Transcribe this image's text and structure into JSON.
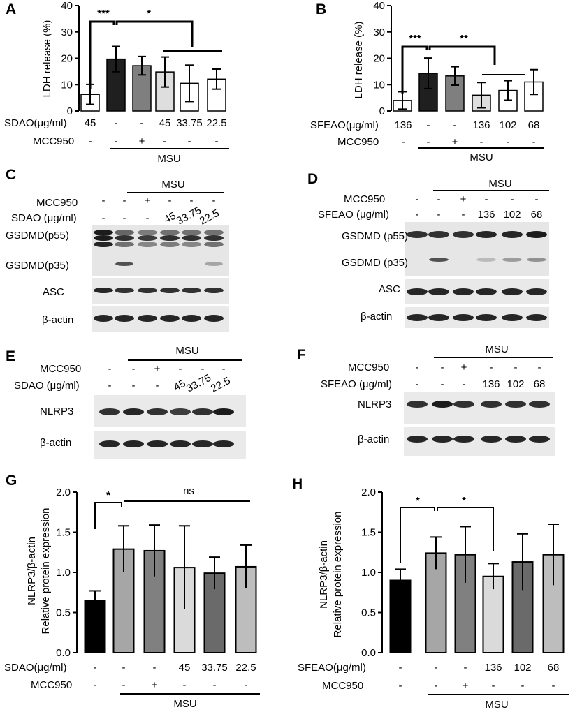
{
  "panels": {
    "A": {
      "label": "A",
      "chart_data": {
        "type": "bar",
        "ylabel": "LDH release (%)",
        "ylim": [
          0,
          40
        ],
        "yticks": [
          0,
          10,
          20,
          30,
          40
        ],
        "values": [
          6.3,
          19.7,
          17.2,
          14.8,
          10.5,
          12.1
        ],
        "errors": [
          3.8,
          4.8,
          3.5,
          5.7,
          6.9,
          3.8
        ],
        "colors": [
          "#ffffff",
          "#1f1f1f",
          "#7f7f7f",
          "#dedede",
          "#ffffff",
          "#ffffff"
        ],
        "row_labels": [
          "SDAO(μg/ml)",
          "MCC950"
        ],
        "conditions": [
          [
            "45",
            "-"
          ],
          [
            "-",
            "-"
          ],
          [
            "-",
            "+"
          ],
          [
            "45",
            "-"
          ],
          [
            "33.75",
            "-"
          ],
          [
            "22.5",
            "-"
          ]
        ],
        "group_label": "MSU",
        "significance": [
          "***",
          "*"
        ]
      }
    },
    "B": {
      "label": "B",
      "chart_data": {
        "type": "bar",
        "ylabel": "LDH release (%)",
        "ylim": [
          0,
          40
        ],
        "yticks": [
          0,
          10,
          20,
          30,
          40
        ],
        "values": [
          4.0,
          14.3,
          13.3,
          6.0,
          7.8,
          11.0
        ],
        "errors": [
          3.3,
          5.8,
          3.5,
          4.8,
          3.7,
          4.7
        ],
        "colors": [
          "#ffffff",
          "#1f1f1f",
          "#7f7f7f",
          "#dedede",
          "#ffffff",
          "#ffffff"
        ],
        "row_labels": [
          "SFEAO(μg/ml)",
          "MCC950"
        ],
        "conditions": [
          [
            "136",
            "-"
          ],
          [
            "-",
            "-"
          ],
          [
            "-",
            "+"
          ],
          [
            "136",
            "-"
          ],
          [
            "102",
            "-"
          ],
          [
            "68",
            "-"
          ]
        ],
        "group_label": "MSU",
        "significance": [
          "***",
          "**"
        ]
      }
    },
    "C": {
      "label": "C",
      "group_label": "MSU",
      "row_labels": [
        "MCC950",
        "SDAO (μg/ml)"
      ],
      "conditions": [
        [
          "-",
          "-"
        ],
        [
          "-",
          "-"
        ],
        [
          "+",
          "-"
        ],
        [
          "-",
          "45"
        ],
        [
          "-",
          "33.75"
        ],
        [
          "-",
          "22.5"
        ]
      ],
      "blots": [
        "GSDMD(p55)",
        "GSDMD(p35)",
        "ASC",
        "β-actin"
      ]
    },
    "D": {
      "label": "D",
      "group_label": "MSU",
      "row_labels": [
        "MCC950",
        "SFEAO (μg/ml)"
      ],
      "conditions": [
        [
          "-",
          "-"
        ],
        [
          "-",
          "-"
        ],
        [
          "+",
          "-"
        ],
        [
          "-",
          "136"
        ],
        [
          "-",
          "102"
        ],
        [
          "-",
          "68"
        ]
      ],
      "blots": [
        "GSDMD (p55)",
        "GSDMD (p35)",
        "ASC",
        "β-actin"
      ]
    },
    "E": {
      "label": "E",
      "group_label": "MSU",
      "row_labels": [
        "MCC950",
        "SDAO (μg/ml)"
      ],
      "conditions": [
        [
          "-",
          "-"
        ],
        [
          "-",
          "-"
        ],
        [
          "+",
          "-"
        ],
        [
          "-",
          "45"
        ],
        [
          "-",
          "33.75"
        ],
        [
          "-",
          "22.5"
        ]
      ],
      "blots": [
        "NLRP3",
        "β-actin"
      ]
    },
    "F": {
      "label": "F",
      "group_label": "MSU",
      "row_labels": [
        "MCC950",
        "SFEAO (μg/ml)"
      ],
      "conditions": [
        [
          "-",
          "-"
        ],
        [
          "-",
          "-"
        ],
        [
          "+",
          "-"
        ],
        [
          "-",
          "136"
        ],
        [
          "-",
          "102"
        ],
        [
          "-",
          "68"
        ]
      ],
      "blots": [
        "NLRP3",
        "β-actin"
      ]
    },
    "G": {
      "label": "G",
      "chart_data": {
        "type": "bar",
        "ylabel_line1": "NLRP3/β-actin",
        "ylabel_line2": "Relative protein expression",
        "ylim": [
          0,
          2.0
        ],
        "yticks": [
          "0.0",
          "0.5",
          "1.0",
          "1.5",
          "2.0"
        ],
        "values": [
          0.65,
          1.29,
          1.27,
          1.06,
          0.99,
          1.07
        ],
        "errors": [
          0.12,
          0.29,
          0.32,
          0.52,
          0.2,
          0.27
        ],
        "colors": [
          "#000000",
          "#a6a6a6",
          "#808080",
          "#dadada",
          "#6a6a6a",
          "#bdbdbd"
        ],
        "row_labels": [
          "SDAO(μg/ml)",
          "MCC950"
        ],
        "conditions": [
          [
            "-",
            "-"
          ],
          [
            "-",
            "-"
          ],
          [
            "-",
            "+"
          ],
          [
            "45",
            "-"
          ],
          [
            "33.75",
            "-"
          ],
          [
            "22.5",
            "-"
          ]
        ],
        "group_label": "MSU",
        "significance": [
          "*",
          "ns"
        ]
      }
    },
    "H": {
      "label": "H",
      "chart_data": {
        "type": "bar",
        "ylabel_line1": "NLRP3/β-actin",
        "ylabel_line2": "Relative protein expression",
        "ylim": [
          0,
          2.0
        ],
        "yticks": [
          "0.0",
          "0.5",
          "1.0",
          "1.5",
          "2.0"
        ],
        "values": [
          0.9,
          1.24,
          1.22,
          0.95,
          1.13,
          1.22
        ],
        "errors": [
          0.14,
          0.2,
          0.35,
          0.16,
          0.35,
          0.38
        ],
        "colors": [
          "#000000",
          "#a6a6a6",
          "#808080",
          "#dadada",
          "#6a6a6a",
          "#bdbdbd"
        ],
        "row_labels": [
          "SFEAO(μg/ml)",
          "MCC950"
        ],
        "conditions": [
          [
            "-",
            "-"
          ],
          [
            "-",
            "-"
          ],
          [
            "-",
            "+"
          ],
          [
            "136",
            "-"
          ],
          [
            "102",
            "-"
          ],
          [
            "68",
            "-"
          ]
        ],
        "group_label": "MSU",
        "significance": [
          "*",
          "*"
        ]
      }
    }
  }
}
